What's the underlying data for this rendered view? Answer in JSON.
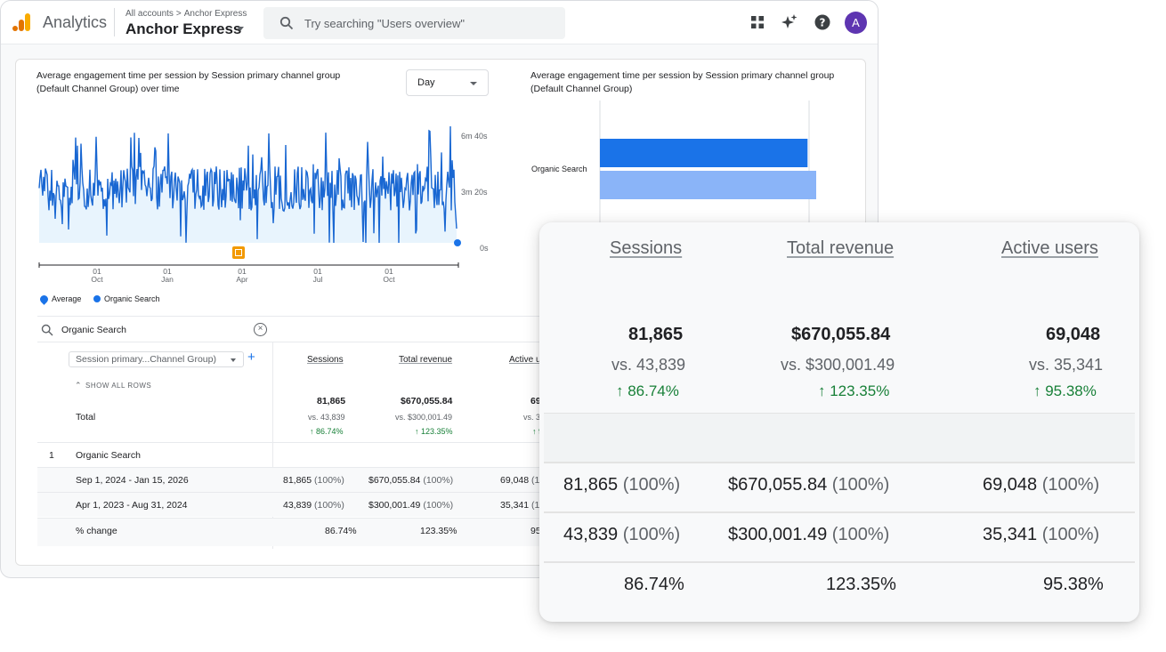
{
  "header": {
    "product_name": "Analytics",
    "breadcrumb_root": "All accounts",
    "breadcrumb_separator": ">",
    "breadcrumb_account": "Anchor Express",
    "property_name": "Anchor Express",
    "search_placeholder": "Try searching \"Users overview\"",
    "avatar_letter": "A",
    "icons": [
      "apps-grid-icon",
      "sparkle-icon",
      "help-icon"
    ]
  },
  "line_chart": {
    "title": "Average engagement time per session by Session primary channel group (Default Channel Group) over time",
    "granularity": "Day",
    "y_ticks": [
      "6m 40s",
      "3m 20s",
      "0s"
    ],
    "x_ticks": [
      {
        "day": "01",
        "month": "Oct"
      },
      {
        "day": "01",
        "month": "Jan"
      },
      {
        "day": "01",
        "month": "Apr"
      },
      {
        "day": "01",
        "month": "Jul"
      },
      {
        "day": "01",
        "month": "Oct"
      }
    ],
    "legend": [
      "Average",
      "Organic Search"
    ],
    "line_color": "#1967d2",
    "area_color": "#e8f4fd"
  },
  "bar_chart": {
    "title": "Average engagement time per session by Session primary channel group (Default Channel Group)",
    "category": "Organic Search",
    "current_color": "#1a73e8",
    "previous_color": "#8ab4f8",
    "current_fraction": 0.96,
    "previous_fraction": 1.0
  },
  "filter": {
    "value": "Organic Search"
  },
  "table": {
    "dimension_label": "Session primary...Channel Group)",
    "show_all_label": "SHOW ALL ROWS",
    "total_label": "Total",
    "columns": [
      "Sessions",
      "Total revenue",
      "Active u"
    ],
    "totals": {
      "values": [
        "81,865",
        "$670,055.84",
        "69"
      ],
      "vs": [
        "vs. 43,839",
        "vs. $300,001.49",
        "vs. 3"
      ],
      "change": [
        "↑ 86.74%",
        "↑ 123.35%",
        "↑ 95"
      ]
    },
    "rows": [
      {
        "index": "1",
        "label": "Organic Search",
        "cells": [
          "",
          "",
          ""
        ]
      },
      {
        "index": "",
        "label": "Sep 1, 2024 - Jan 15, 2026",
        "cells": [
          "81,865",
          "$670,055.84",
          "69,048"
        ],
        "pcts": [
          "(100%)",
          "(100%)",
          "(1"
        ]
      },
      {
        "index": "",
        "label": "Apr 1, 2023 - Aug 31, 2024",
        "cells": [
          "43,839",
          "$300,001.49",
          "35,341"
        ],
        "pcts": [
          "(100%)",
          "(100%)",
          "(1"
        ]
      },
      {
        "index": "",
        "label": "% change",
        "cells": [
          "86.74%",
          "123.35%",
          "95"
        ],
        "pcts": [
          "",
          "",
          ""
        ]
      }
    ]
  },
  "zoom_panel": {
    "columns": [
      "Sessions",
      "Total revenue",
      "Active users"
    ],
    "totals": [
      "81,865",
      "$670,055.84",
      "69,048"
    ],
    "vs": [
      "vs. 43,839",
      "vs. $300,001.49",
      "vs. 35,341"
    ],
    "change": [
      "↑ 86.74%",
      "↑ 123.35%",
      "↑ 95.38%"
    ],
    "current_row": [
      {
        "value": "81,865",
        "pct": "(100%)"
      },
      {
        "value": "$670,055.84",
        "pct": "(100%)"
      },
      {
        "value": "69,048",
        "pct": "(100%)"
      }
    ],
    "previous_row": [
      {
        "value": "43,839",
        "pct": "(100%)"
      },
      {
        "value": "$300,001.49",
        "pct": "(100%)"
      },
      {
        "value": "35,341",
        "pct": "(100%)"
      }
    ],
    "change_row": [
      "86.74%",
      "123.35%",
      "95.38%"
    ]
  }
}
